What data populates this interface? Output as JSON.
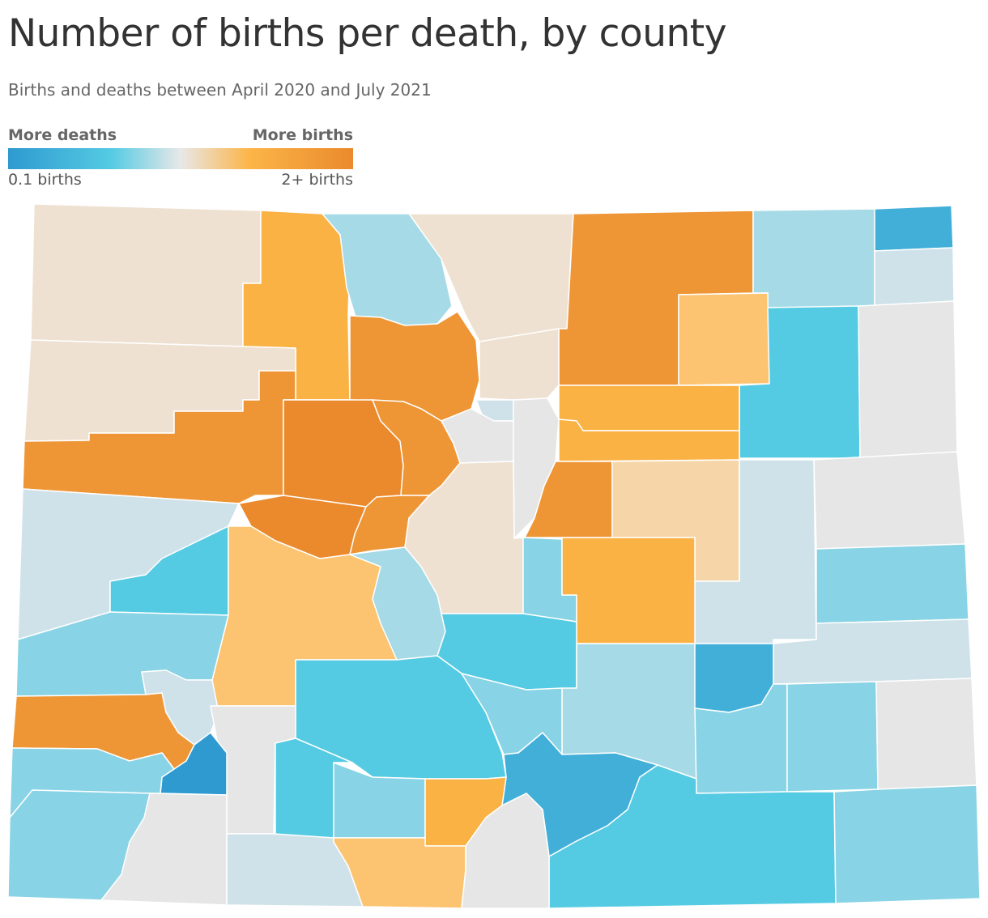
{
  "title": "Number of births per death, by county",
  "subtitle": "Births and deaths between April 2020 and July 2021",
  "legend": {
    "left_label": "More deaths",
    "right_label": "More births",
    "min_label": "0.1 births",
    "max_label": "2+ births",
    "stops": [
      "#2e9ad0",
      "#55cbe3",
      "#e8e8e8",
      "#fcb548",
      "#ea8a2c"
    ]
  },
  "colors": {
    "strong_orange": "#ea8a2c",
    "orange": "#ee9636",
    "light_orange": "#fbb244",
    "pale_orange": "#fcc470",
    "peach": "#f6d6a8",
    "beige": "#efe1d1",
    "neutral_gray": "#e6e6e6",
    "pale_blue": "#cfe2ea",
    "light_blue": "#a6dae6",
    "mid_blue": "#88d3e5",
    "cyan": "#55cbe3",
    "blue": "#42afd8",
    "deep_blue": "#2e9ad0"
  }
}
